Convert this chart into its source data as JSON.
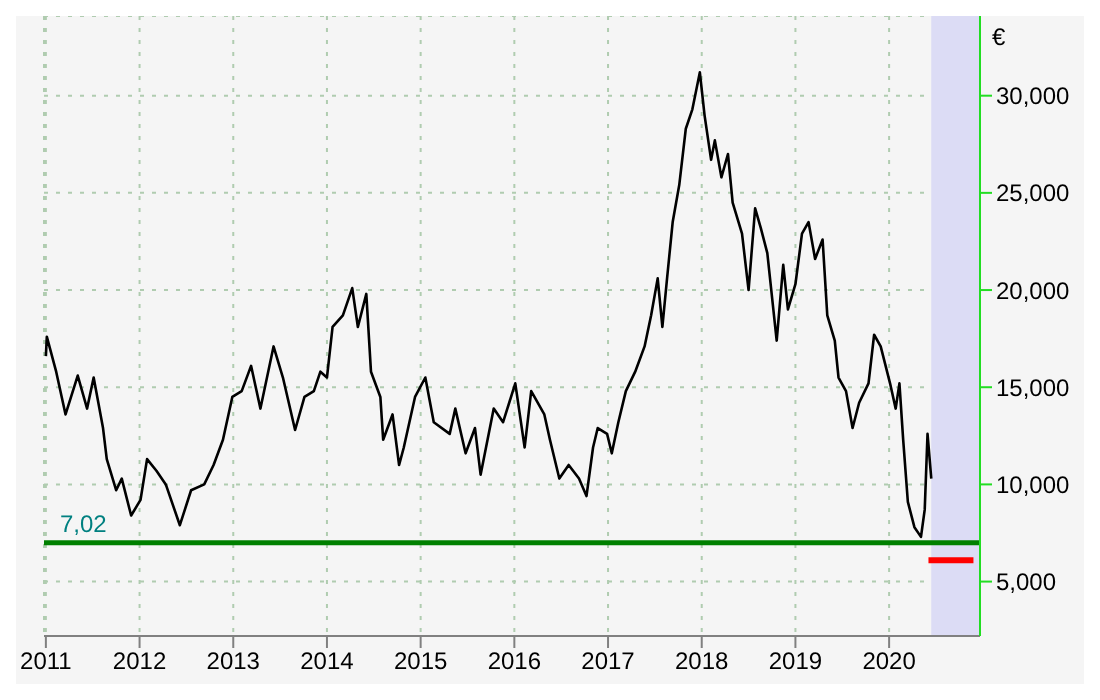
{
  "chart_data": {
    "type": "line",
    "ylabel": "€",
    "xlim": [
      2010.98,
      2020.97
    ],
    "xticks": [
      2011,
      2012,
      2013,
      2014,
      2015,
      2016,
      2017,
      2018,
      2019,
      2020
    ],
    "ylim": [
      2200,
      34100
    ],
    "yticks": [
      {
        "value": 5000,
        "label": "5,000"
      },
      {
        "value": 10000,
        "label": "10,000"
      },
      {
        "value": 15000,
        "label": "15,000"
      },
      {
        "value": 20000,
        "label": "20,000"
      },
      {
        "value": 25000,
        "label": "25,000"
      },
      {
        "value": 30000,
        "label": "30,000"
      }
    ],
    "grid": true,
    "marker": "none",
    "line_style": "solid",
    "series": [
      {
        "color": "#000000",
        "x": [
          2011.0,
          2011.01,
          2011.11,
          2011.21,
          2011.34,
          2011.44,
          2011.51,
          2011.61,
          2011.65,
          2011.75,
          2011.81,
          2011.91,
          2012.01,
          2012.08,
          2012.18,
          2012.28,
          2012.43,
          2012.55,
          2012.69,
          2012.79,
          2012.89,
          2012.99,
          2013.09,
          2013.19,
          2013.29,
          2013.43,
          2013.53,
          2013.66,
          2013.76,
          2013.86,
          2013.93,
          2014.0,
          2014.06,
          2014.17,
          2014.27,
          2014.33,
          2014.42,
          2014.47,
          2014.57,
          2014.6,
          2014.7,
          2014.77,
          2014.82,
          2014.94,
          2015.05,
          2015.14,
          2015.31,
          2015.37,
          2015.48,
          2015.58,
          2015.64,
          2015.78,
          2015.88,
          2016.01,
          2016.11,
          2016.18,
          2016.32,
          2016.38,
          2016.48,
          2016.58,
          2016.69,
          2016.77,
          2016.84,
          2016.89,
          2016.99,
          2017.04,
          2017.11,
          2017.19,
          2017.29,
          2017.39,
          2017.46,
          2017.53,
          2017.58,
          2017.63,
          2017.69,
          2017.76,
          2017.83,
          2017.9,
          2017.98,
          2018.03,
          2018.1,
          2018.14,
          2018.21,
          2018.28,
          2018.33,
          2018.43,
          2018.5,
          2018.57,
          2018.63,
          2018.7,
          2018.8,
          2018.87,
          2018.92,
          2019.0,
          2019.07,
          2019.14,
          2019.21,
          2019.29,
          2019.34,
          2019.42,
          2019.46,
          2019.54,
          2019.61,
          2019.68,
          2019.78,
          2019.84,
          2019.91,
          2020.01,
          2020.07,
          2020.11,
          2020.15,
          2020.2,
          2020.27,
          2020.34,
          2020.38,
          2020.41,
          2020.45
        ],
        "values": [
          16600,
          17600,
          15800,
          13600,
          15600,
          13900,
          15500,
          12900,
          11300,
          9700,
          10300,
          8400,
          9200,
          11300,
          10700,
          10000,
          7900,
          9700,
          10000,
          11000,
          12300,
          14500,
          14800,
          16100,
          13900,
          17100,
          15500,
          12800,
          14500,
          14800,
          15800,
          15500,
          18100,
          18700,
          20100,
          18100,
          19800,
          15800,
          14500,
          12300,
          13600,
          11000,
          11900,
          14500,
          15500,
          13200,
          12600,
          13900,
          11600,
          12900,
          10500,
          13900,
          13200,
          15200,
          11900,
          14800,
          13600,
          12300,
          10300,
          11000,
          10300,
          9400,
          11900,
          12900,
          12600,
          11600,
          13200,
          14800,
          15800,
          17100,
          18700,
          20600,
          18100,
          20600,
          23500,
          25400,
          28300,
          29300,
          31200,
          29000,
          26700,
          27700,
          25800,
          27000,
          24500,
          22900,
          20000,
          24200,
          23200,
          21900,
          17400,
          21300,
          19000,
          20300,
          22900,
          23500,
          21600,
          22600,
          18700,
          17400,
          15500,
          14800,
          12900,
          14200,
          15200,
          17700,
          17100,
          15200,
          13900,
          15200,
          12300,
          9100,
          7800,
          7300,
          8700,
          12600,
          10300
        ]
      },
      {
        "color": "#ff0000",
        "x": [
          2020.42,
          2020.9
        ],
        "values": [
          6100,
          6100
        ]
      }
    ],
    "ref_lines": [
      {
        "axis": "y",
        "value": 7000,
        "color": "#008000"
      }
    ],
    "annotations": [
      "7,02"
    ],
    "bands": [
      {
        "axis": "x",
        "from": 2020.45,
        "to": 2020.97,
        "color": "#dcdcf5"
      }
    ]
  }
}
